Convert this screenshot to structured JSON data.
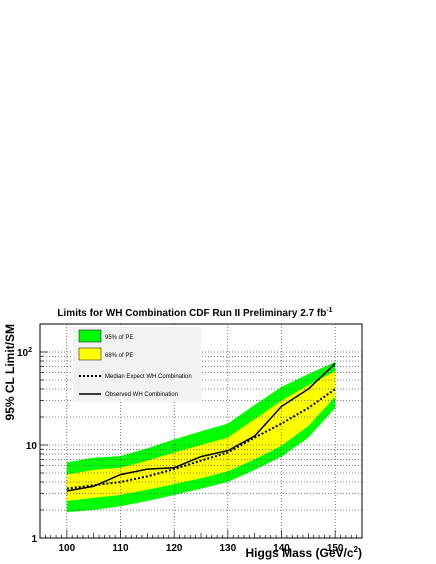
{
  "chart_data": {
    "type": "line",
    "title": "Limits for WH Combination CDF Run II Preliminary 2.7 fb",
    "title_superscript": "-1",
    "xlabel": "Higgs Mass (GeV/c",
    "xlabel_superscript": "2",
    "xlabel_suffix": ")",
    "ylabel": "95% CL Limit/SM",
    "xlim": [
      95,
      155
    ],
    "ylim": [
      1,
      200
    ],
    "yscale": "log",
    "grid": true,
    "legend_position": "top-left",
    "x_ticks": [
      100,
      110,
      120,
      130,
      140,
      150
    ],
    "y_ticks": [
      {
        "value": 1,
        "label": "1",
        "sup": ""
      },
      {
        "value": 10,
        "label": "10",
        "sup": ""
      },
      {
        "value": 100,
        "label": "10",
        "sup": "2"
      }
    ],
    "x": [
      100,
      105,
      110,
      115,
      120,
      125,
      130,
      135,
      140,
      145,
      150
    ],
    "band95": {
      "name": "95% of PE",
      "color": "#00ff00",
      "lower": [
        1.9,
        2.0,
        2.2,
        2.5,
        2.9,
        3.4,
        4.0,
        5.4,
        7.5,
        12.0,
        25.0
      ],
      "upper": [
        6.5,
        7.3,
        7.6,
        9.2,
        11.5,
        14.0,
        17.0,
        27.0,
        42.0,
        58.0,
        78.0
      ]
    },
    "band68": {
      "name": "68% of PE",
      "color": "#ffff00",
      "lower": [
        2.5,
        2.7,
        2.9,
        3.3,
        3.8,
        4.4,
        5.2,
        7.0,
        9.8,
        16.0,
        33.0
      ],
      "upper": [
        4.8,
        5.4,
        5.7,
        6.8,
        8.3,
        10.0,
        12.0,
        19.0,
        30.0,
        44.0,
        62.0
      ]
    },
    "series": [
      {
        "name": "Median Expect WH Combination",
        "style": "dotted",
        "values": [
          3.4,
          3.7,
          4.0,
          4.6,
          5.5,
          6.8,
          8.3,
          12.0,
          17.0,
          25.0,
          40.0
        ]
      },
      {
        "name": "Observed WH Combination",
        "style": "solid",
        "values": [
          3.2,
          3.6,
          4.8,
          5.5,
          5.7,
          7.5,
          8.7,
          12.5,
          26.0,
          40.0,
          75.0
        ]
      }
    ]
  }
}
